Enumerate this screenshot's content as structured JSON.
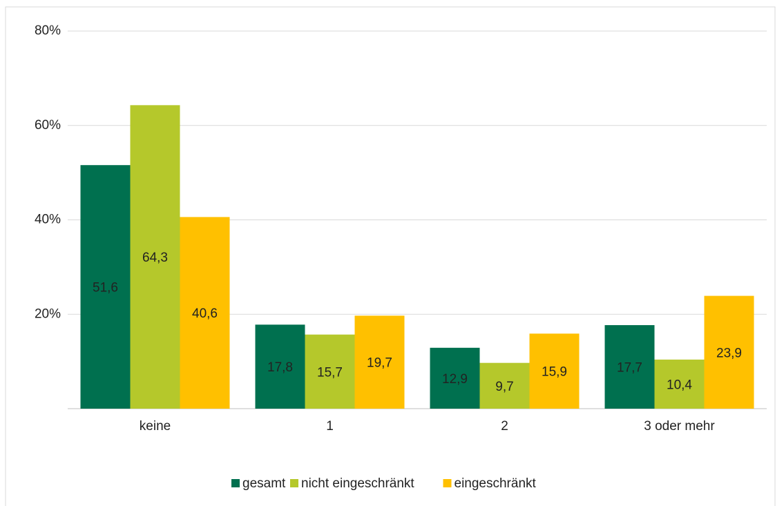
{
  "chart_data": {
    "type": "bar",
    "categories": [
      "keine",
      "1",
      "2",
      "3 oder mehr"
    ],
    "series": [
      {
        "name": "gesamt",
        "color": "#00704f",
        "values": [
          51.6,
          17.8,
          12.9,
          17.7
        ],
        "value_labels": [
          "51,6",
          "17,8",
          "12,9",
          "17,7"
        ]
      },
      {
        "name": "nicht eingeschränkt",
        "color": "#b5c82b",
        "values": [
          64.3,
          15.7,
          9.7,
          10.4
        ],
        "value_labels": [
          "64,3",
          "15,7",
          "9,7",
          "10,4"
        ]
      },
      {
        "name": "eingeschränkt",
        "color": "#ffc000",
        "values": [
          40.6,
          19.7,
          15.9,
          23.9
        ],
        "value_labels": [
          "40,6",
          "19,7",
          "15,9",
          "23,9"
        ]
      }
    ],
    "ylim": [
      0,
      80
    ],
    "yticks": [
      {
        "value": 20,
        "label": "20%"
      },
      {
        "value": 40,
        "label": "40%"
      },
      {
        "value": 60,
        "label": "60%"
      },
      {
        "value": 80,
        "label": "80%"
      }
    ],
    "grid": true,
    "legend": "bottom"
  }
}
